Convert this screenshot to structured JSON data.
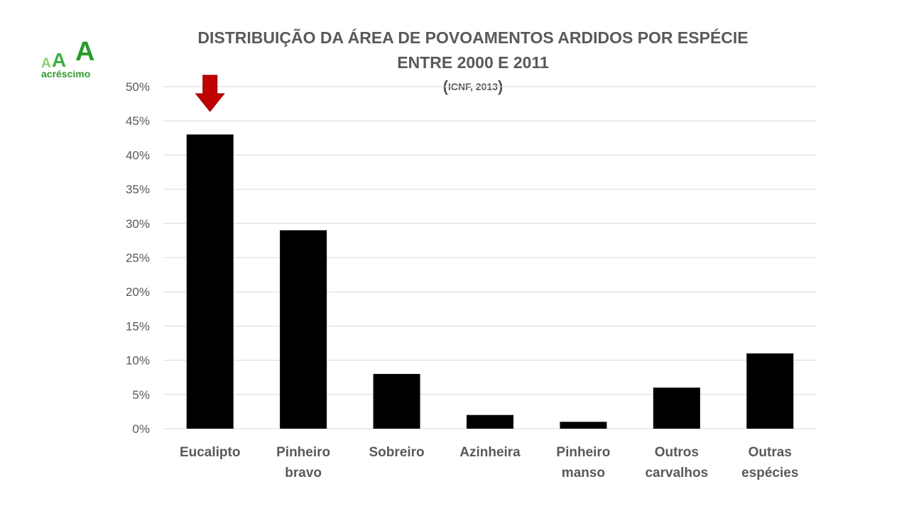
{
  "logo": {
    "letters": [
      "A",
      "A",
      "A"
    ],
    "word": "acréscimo",
    "colors": [
      "#8ed26b",
      "#3cb043",
      "#2a9a2a"
    ]
  },
  "title": {
    "line1": "DISTRIBUIÇÃO DA ÁREA DE POVOAMENTOS ARDIDOS POR ESPÉCIE",
    "line2": "ENTRE 2000 E 2011",
    "source_open": "(",
    "source": "ICNF, 2013",
    "source_close": ")"
  },
  "chart_data": {
    "type": "bar",
    "categories": [
      [
        "Eucalipto"
      ],
      [
        "Pinheiro",
        "bravo"
      ],
      [
        "Sobreiro"
      ],
      [
        "Azinheira"
      ],
      [
        "Pinheiro",
        "manso"
      ],
      [
        "Outros",
        "carvalhos"
      ],
      [
        "Outras",
        "espécies"
      ]
    ],
    "values": [
      43,
      29,
      8,
      2,
      1,
      6,
      11
    ],
    "y_ticks": [
      "0%",
      "5%",
      "10%",
      "15%",
      "20%",
      "25%",
      "30%",
      "35%",
      "40%",
      "45%",
      "50%"
    ],
    "ylim": [
      0,
      50
    ],
    "grid": true,
    "bar_color": "#000000",
    "grid_color": "#d9d9d9",
    "highlight": {
      "category": "Eucalipto",
      "marker": "down-arrow-icon",
      "color": "#c00000"
    }
  }
}
